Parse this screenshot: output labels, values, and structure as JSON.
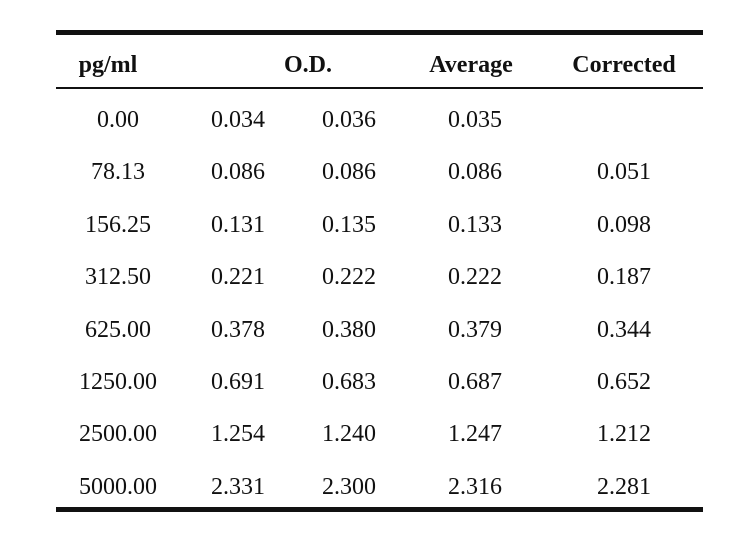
{
  "table": {
    "headers": {
      "pg": "pg/ml",
      "od": "O.D.",
      "average": "Average",
      "corrected": "Corrected"
    },
    "rows": [
      {
        "pg": "0.00",
        "od1": "0.034",
        "od2": "0.036",
        "average": "0.035",
        "corrected": ""
      },
      {
        "pg": "78.13",
        "od1": "0.086",
        "od2": "0.086",
        "average": "0.086",
        "corrected": "0.051"
      },
      {
        "pg": "156.25",
        "od1": "0.131",
        "od2": "0.135",
        "average": "0.133",
        "corrected": "0.098"
      },
      {
        "pg": "312.50",
        "od1": "0.221",
        "od2": "0.222",
        "average": "0.222",
        "corrected": "0.187"
      },
      {
        "pg": "625.00",
        "od1": "0.378",
        "od2": "0.380",
        "average": "0.379",
        "corrected": "0.344"
      },
      {
        "pg": "1250.00",
        "od1": "0.691",
        "od2": "0.683",
        "average": "0.687",
        "corrected": "0.652"
      },
      {
        "pg": "2500.00",
        "od1": "1.254",
        "od2": "1.240",
        "average": "1.247",
        "corrected": "1.212"
      },
      {
        "pg": "5000.00",
        "od1": "2.331",
        "od2": "2.300",
        "average": "2.316",
        "corrected": "2.281"
      }
    ]
  }
}
